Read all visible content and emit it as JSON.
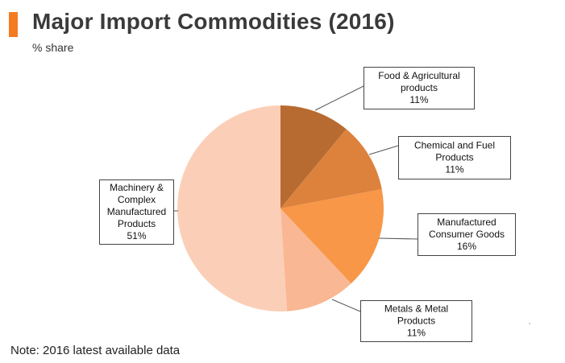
{
  "header": {
    "title": "Major Import Commodities (2016)",
    "subtitle": "% share",
    "accent_color": "#f47b20"
  },
  "note": "Note: 2016 latest available data",
  "chart_data": {
    "type": "pie",
    "title": "Major Import Commodities (2016)",
    "unit": "% share",
    "start": "12 o'clock",
    "direction": "clockwise",
    "slices": [
      {
        "name": "Food & Agricultural products",
        "value": 11,
        "color": "#b86b30",
        "label_lines": [
          "Food & Agricultural",
          "products",
          "11%"
        ]
      },
      {
        "name": "Chemical and Fuel Products",
        "value": 11,
        "color": "#dc823d",
        "label_lines": [
          "Chemical and Fuel",
          "Products",
          "11%"
        ]
      },
      {
        "name": "Manufactured Consumer Goods",
        "value": 16,
        "color": "#f79747",
        "label_lines": [
          "Manufactured",
          "Consumer Goods",
          "16%"
        ]
      },
      {
        "name": "Metals & Metal Products",
        "value": 11,
        "color": "#f9b793",
        "label_lines": [
          "Metals & Metal",
          "Products",
          "11%"
        ]
      },
      {
        "name": "Machinery & Complex Manufactured Products",
        "value": 51,
        "color": "#fbcfb7",
        "label_lines": [
          "Machinery &",
          "Complex",
          "Manufactured",
          "Products",
          "51%"
        ]
      }
    ]
  }
}
